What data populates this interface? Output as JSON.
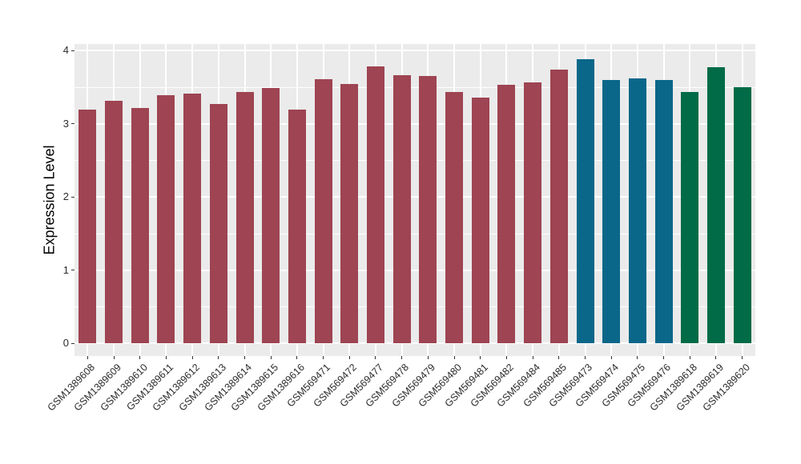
{
  "chart_data": {
    "type": "bar",
    "title": "",
    "xlabel": "",
    "ylabel": "Expression Level",
    "ylim": [
      0,
      4
    ],
    "yticks": [
      0,
      1,
      2,
      3,
      4
    ],
    "minor_gridlines": [
      0.5,
      1.5,
      2.5,
      3.5
    ],
    "grid": true,
    "legend_position": "none",
    "panel_background": "#EBEBEB",
    "gridline_color": "#FFFFFF",
    "tick_color": "#333333",
    "palette": {
      "maroon": "#9E4452",
      "teal": "#0A6789",
      "green": "#006B46"
    },
    "categories": [
      "GSM1389608",
      "GSM1389609",
      "GSM1389610",
      "GSM1389611",
      "GSM1389612",
      "GSM1389613",
      "GSM1389614",
      "GSM1389615",
      "GSM1389616",
      "GSM569471",
      "GSM569472",
      "GSM569477",
      "GSM569478",
      "GSM569479",
      "GSM569480",
      "GSM569481",
      "GSM569482",
      "GSM569484",
      "GSM569485",
      "GSM569473",
      "GSM569474",
      "GSM569475",
      "GSM569476",
      "GSM1389618",
      "GSM1389619",
      "GSM1389620"
    ],
    "values": [
      3.2,
      3.31,
      3.22,
      3.39,
      3.41,
      3.27,
      3.44,
      3.49,
      3.2,
      3.61,
      3.54,
      3.78,
      3.66,
      3.65,
      3.43,
      3.36,
      3.53,
      3.57,
      3.74,
      3.88,
      3.6,
      3.62,
      3.6,
      3.44,
      3.77,
      3.5
    ],
    "bar_color_keys": [
      "maroon",
      "maroon",
      "maroon",
      "maroon",
      "maroon",
      "maroon",
      "maroon",
      "maroon",
      "maroon",
      "maroon",
      "maroon",
      "maroon",
      "maroon",
      "maroon",
      "maroon",
      "maroon",
      "maroon",
      "maroon",
      "maroon",
      "teal",
      "teal",
      "teal",
      "teal",
      "green",
      "green",
      "green"
    ]
  }
}
